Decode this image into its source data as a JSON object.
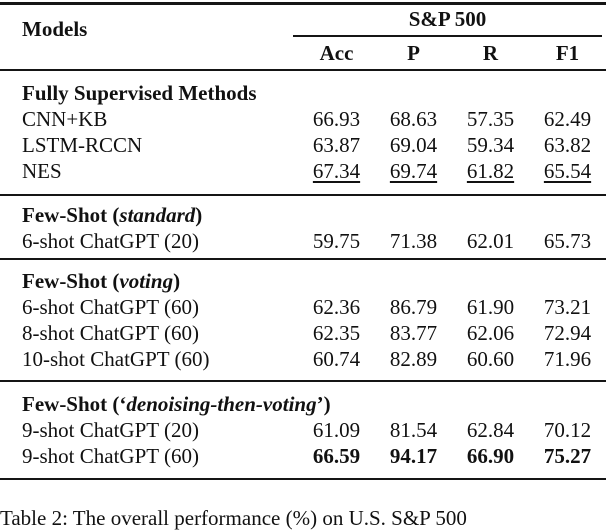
{
  "header": {
    "models_label": "Models",
    "group_label": "S&P 500",
    "sub_headers": [
      "Acc",
      "P",
      "R",
      "F1"
    ]
  },
  "sections": [
    {
      "title_prefix": "Fully Supervised Methods",
      "title_italic": "",
      "title_suffix": "",
      "rows": [
        {
          "label": "CNN+KB",
          "values": [
            "66.93",
            "68.63",
            "57.35",
            "62.49"
          ],
          "style": "normal"
        },
        {
          "label": "LSTM-RCCN",
          "values": [
            "63.87",
            "69.04",
            "59.34",
            "63.82"
          ],
          "style": "normal"
        },
        {
          "label": "NES",
          "values": [
            "67.34",
            "69.74",
            "61.82",
            "65.54"
          ],
          "style": "underline"
        }
      ]
    },
    {
      "title_prefix": "Few-Shot (",
      "title_italic": "standard",
      "title_suffix": ")",
      "rows": [
        {
          "label": "6-shot ChatGPT (20)",
          "values": [
            "59.75",
            "71.38",
            "62.01",
            "65.73"
          ],
          "style": "normal"
        }
      ]
    },
    {
      "title_prefix": "Few-Shot (",
      "title_italic": "voting",
      "title_suffix": ")",
      "rows": [
        {
          "label": "6-shot ChatGPT (60)",
          "values": [
            "62.36",
            "86.79",
            "61.90",
            "73.21"
          ],
          "style": "normal"
        },
        {
          "label": "8-shot ChatGPT (60)",
          "values": [
            "62.35",
            "83.77",
            "62.06",
            "72.94"
          ],
          "style": "normal"
        },
        {
          "label": "10-shot ChatGPT (60)",
          "values": [
            "60.74",
            "82.89",
            "60.60",
            "71.96"
          ],
          "style": "normal"
        }
      ]
    },
    {
      "title_prefix": "Few-Shot (‘",
      "title_italic": "denoising-then-voting",
      "title_suffix": "’)",
      "rows": [
        {
          "label": "9-shot ChatGPT (20)",
          "values": [
            "61.09",
            "81.54",
            "62.84",
            "70.12"
          ],
          "style": "normal"
        },
        {
          "label": "9-shot ChatGPT (60)",
          "values": [
            "66.59",
            "94.17",
            "66.90",
            "75.27"
          ],
          "style": "bold"
        }
      ]
    }
  ],
  "caption": "Table 2: The overall performance (%) on U.S. S&P 500"
}
